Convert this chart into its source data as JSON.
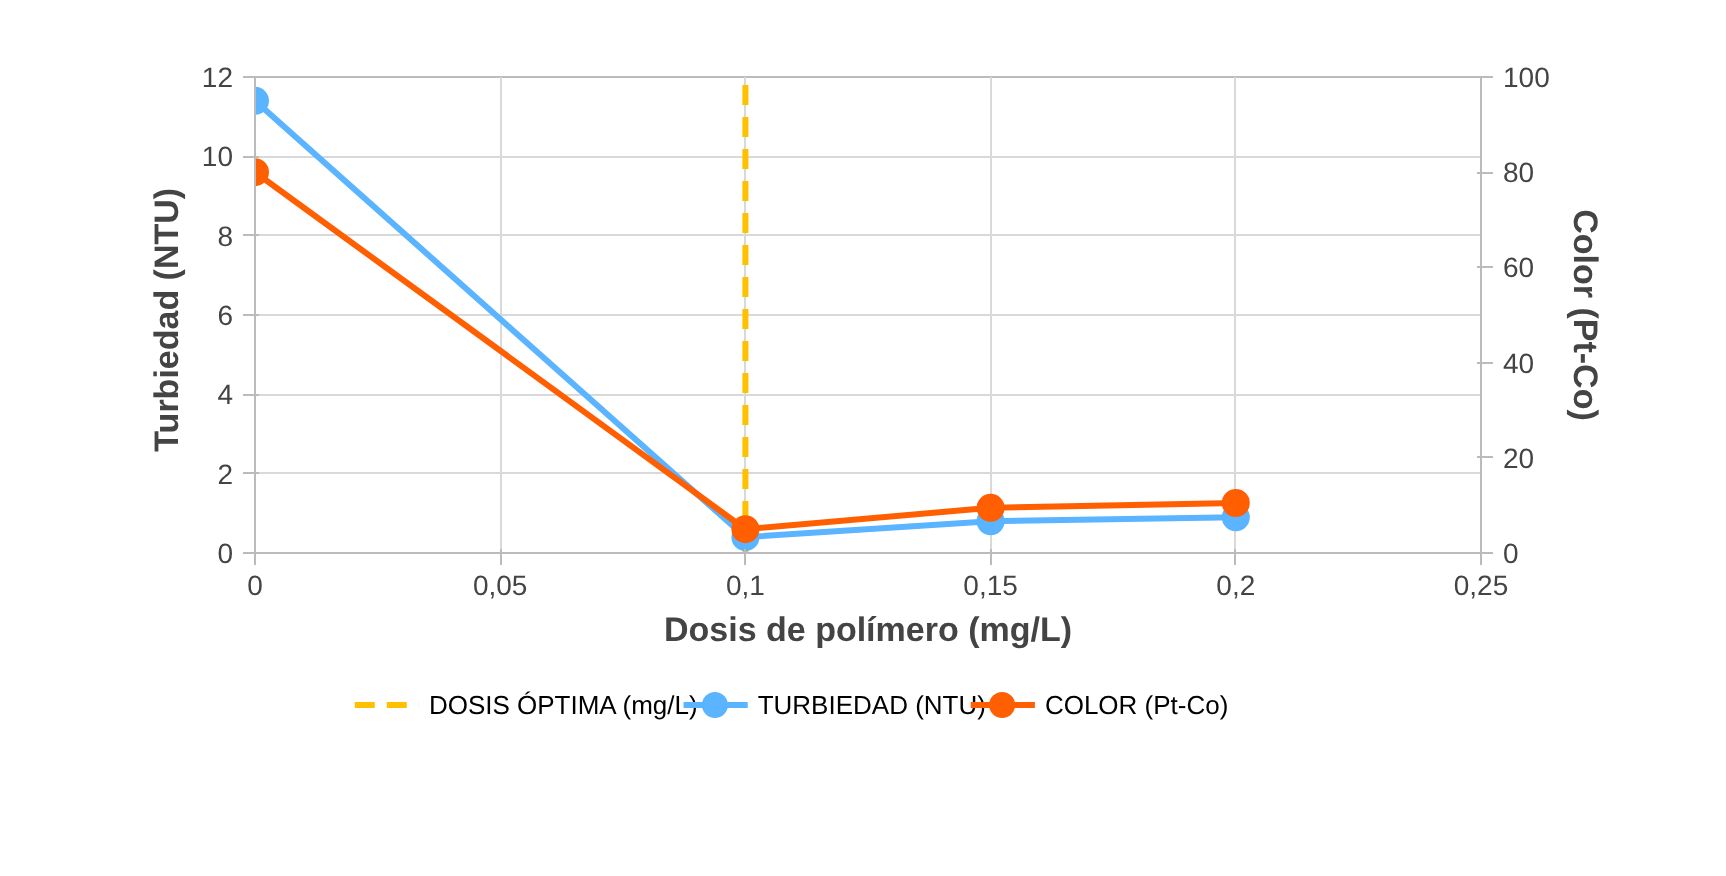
{
  "chart_data": {
    "type": "line",
    "xlabel": "Dosis de polímero (mg/L)",
    "ylabel": "Turbiedad  (NTU)",
    "y2label": "Color (Pt-Co)",
    "x": [
      0,
      0.1,
      0.15,
      0.2
    ],
    "series": [
      {
        "name": "TURBIEDAD (NTU)",
        "color": "#5ab4ff",
        "values": [
          11.4,
          0.4,
          0.8,
          0.9
        ]
      },
      {
        "name": "COLOR (Pt-Co)",
        "color": "#ff5f00",
        "values": [
          80,
          5,
          9.5,
          10.5
        ],
        "axis": "y2"
      }
    ],
    "xlim": [
      0,
      0.25
    ],
    "xticks": [
      {
        "value": 0,
        "label": "0"
      },
      {
        "value": 0.05,
        "label": "0,05"
      },
      {
        "value": 0.1,
        "label": "0,1"
      },
      {
        "value": 0.15,
        "label": "0,15"
      },
      {
        "value": 0.2,
        "label": "0,2"
      },
      {
        "value": 0.25,
        "label": "0,25"
      }
    ],
    "ylim": [
      0,
      12
    ],
    "yticks": [
      0,
      2,
      4,
      6,
      8,
      10,
      12
    ],
    "y2lim": [
      0,
      100
    ],
    "y2ticks": [
      0,
      20,
      40,
      60,
      80,
      100
    ],
    "ref_lines": [
      {
        "axis": "x",
        "value": 0.1,
        "label": "DOSIS ÓPTIMA (mg/L)",
        "color": "#ffc000",
        "line_style": "dashed"
      }
    ],
    "grid": true,
    "legend": "bottom",
    "marker": "circle",
    "line_style": "solid"
  }
}
